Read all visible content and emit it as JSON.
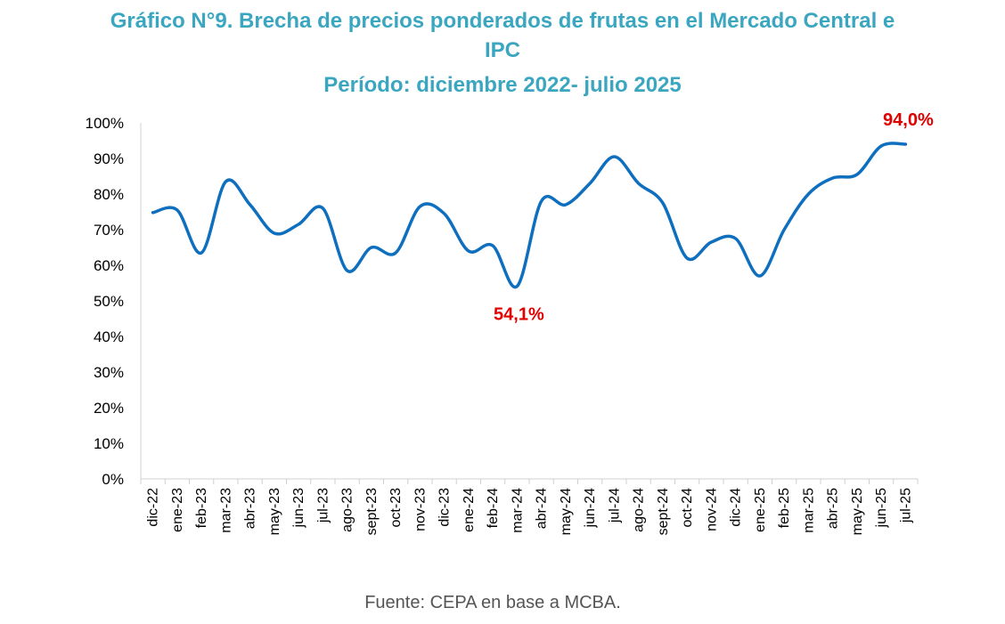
{
  "chart_data": {
    "type": "line",
    "title_line1": "Gráfico N°9. Brecha de precios ponderados de frutas en el Mercado Central e",
    "title_line2": "IPC",
    "subtitle": "Período: diciembre 2022- julio 2025",
    "xlabel": "",
    "ylabel": "",
    "ylim": [
      0,
      100
    ],
    "yticks": [
      "0%",
      "10%",
      "20%",
      "30%",
      "40%",
      "50%",
      "60%",
      "70%",
      "80%",
      "90%",
      "100%"
    ],
    "grid": false,
    "legend": "none",
    "categories": [
      "dic-22",
      "ene-23",
      "feb-23",
      "mar-23",
      "abr-23",
      "may-23",
      "jun-23",
      "jul-23",
      "ago-23",
      "sept-23",
      "oct-23",
      "nov-23",
      "dic-23",
      "ene-24",
      "feb-24",
      "mar-24",
      "abr-24",
      "may-24",
      "jun-24",
      "jul-24",
      "ago-24",
      "sept-24",
      "oct-24",
      "nov-24",
      "dic-24",
      "ene-25",
      "feb-25",
      "mar-25",
      "abr-25",
      "may-25",
      "jun-25",
      "jul-25"
    ],
    "series": [
      {
        "values": [
          74.8,
          75.5,
          63.5,
          83.5,
          77.0,
          69.0,
          71.5,
          76.0,
          58.5,
          65.0,
          63.5,
          76.5,
          74.5,
          64.0,
          65.5,
          54.1,
          78.0,
          77.0,
          83.0,
          90.5,
          83.0,
          77.5,
          62.0,
          66.5,
          67.5,
          57.0,
          70.0,
          80.0,
          84.5,
          85.5,
          93.5,
          94.0
        ],
        "color": "#0f6fbf"
      }
    ],
    "annotations": [
      {
        "text": "54,1%",
        "category": "mar-24",
        "value": 54.1,
        "color": "#e00000"
      },
      {
        "text": "94,0%",
        "category": "jul-25",
        "value": 94.0,
        "color": "#e00000"
      }
    ],
    "source": "Fuente: CEPA en base a MCBA."
  }
}
